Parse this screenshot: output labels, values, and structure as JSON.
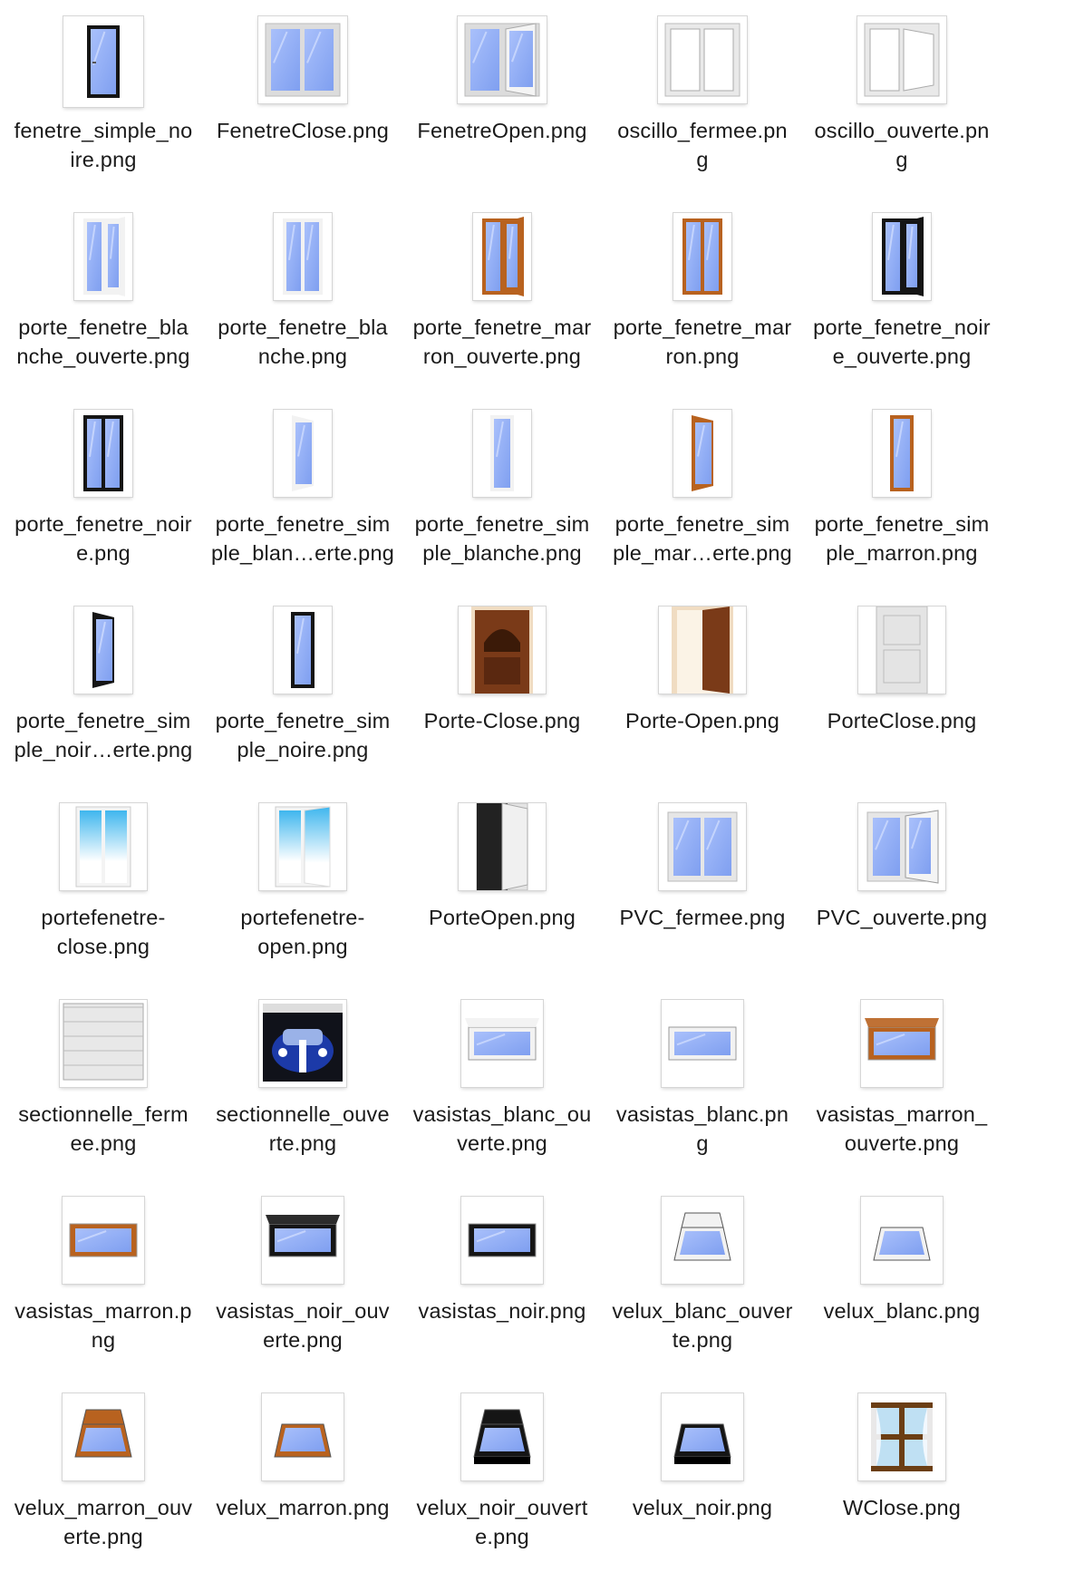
{
  "files": [
    {
      "name": "fenetre_simple_noire.png",
      "label": "fenetre_simple_no\nire.png",
      "icon": "single-window-black-icon"
    },
    {
      "name": "FenetreClose.png",
      "label": "FenetreClose.png",
      "icon": "double-window-closed-icon"
    },
    {
      "name": "FenetreOpen.png",
      "label": "FenetreOpen.png",
      "icon": "double-window-open-icon"
    },
    {
      "name": "oscillo_fermee.png",
      "label": "oscillo_fermee.pn\ng",
      "icon": "tilt-window-closed-icon"
    },
    {
      "name": "oscillo_ouverte.png",
      "label": "oscillo_ouverte.pn\ng",
      "icon": "tilt-window-open-icon"
    },
    {
      "name": "porte_fenetre_blanche_ouverte.png",
      "label": "porte_fenetre_bla\nnche_ouverte.png",
      "icon": "french-window-white-open-icon"
    },
    {
      "name": "porte_fenetre_blanche.png",
      "label": "porte_fenetre_bla\nnche.png",
      "icon": "french-window-white-icon"
    },
    {
      "name": "porte_fenetre_marron_ouverte.png",
      "label": "porte_fenetre_mar\nron_ouverte.png",
      "icon": "french-window-brown-open-icon"
    },
    {
      "name": "porte_fenetre_marron.png",
      "label": "porte_fenetre_mar\nron.png",
      "icon": "french-window-brown-icon"
    },
    {
      "name": "porte_fenetre_noire_ouverte.png",
      "label": "porte_fenetre_noir\ne_ouverte.png",
      "icon": "french-window-black-open-icon"
    },
    {
      "name": "porte_fenetre_noire.png",
      "label": "porte_fenetre_noir\ne.png",
      "icon": "french-window-black-icon"
    },
    {
      "name": "porte_fenetre_simple_blanche_ouverte.png",
      "label": "porte_fenetre_sim\nple_blan…erte.png",
      "icon": "single-french-window-white-open-icon"
    },
    {
      "name": "porte_fenetre_simple_blanche.png",
      "label": "porte_fenetre_sim\nple_blanche.png",
      "icon": "single-french-window-white-icon"
    },
    {
      "name": "porte_fenetre_simple_marron_ouverte.png",
      "label": "porte_fenetre_sim\nple_mar…erte.png",
      "icon": "single-french-window-brown-open-icon"
    },
    {
      "name": "porte_fenetre_simple_marron.png",
      "label": "porte_fenetre_sim\nple_marron.png",
      "icon": "single-french-window-brown-icon"
    },
    {
      "name": "porte_fenetre_simple_noire_ouverte.png",
      "label": "porte_fenetre_sim\nple_noir…erte.png",
      "icon": "single-french-window-black-open-icon"
    },
    {
      "name": "porte_fenetre_simple_noire.png",
      "label": "porte_fenetre_sim\nple_noire.png",
      "icon": "single-french-window-black-icon"
    },
    {
      "name": "Porte-Close.png",
      "label": "Porte-Close.png",
      "icon": "wooden-door-closed-icon"
    },
    {
      "name": "Porte-Open.png",
      "label": "Porte-Open.png",
      "icon": "wooden-door-open-icon"
    },
    {
      "name": "PorteClose.png",
      "label": "PorteClose.png",
      "icon": "white-door-closed-icon"
    },
    {
      "name": "portefenetre-close.png",
      "label": "portefenetre-\nclose.png",
      "icon": "patio-door-closed-icon"
    },
    {
      "name": "portefenetre-open.png",
      "label": "portefenetre-\nopen.png",
      "icon": "patio-door-open-icon"
    },
    {
      "name": "PorteOpen.png",
      "label": "PorteOpen.png",
      "icon": "white-door-open-icon"
    },
    {
      "name": "PVC_fermee.png",
      "label": "PVC_fermee.png",
      "icon": "pvc-window-closed-icon"
    },
    {
      "name": "PVC_ouverte.png",
      "label": "PVC_ouverte.png",
      "icon": "pvc-window-open-icon"
    },
    {
      "name": "sectionnelle_fermee.png",
      "label": "sectionnelle_ferm\nee.png",
      "icon": "garage-door-closed-icon"
    },
    {
      "name": "sectionnelle_ouverte.png",
      "label": "sectionnelle_ouve\nrte.png",
      "icon": "garage-door-open-car-icon"
    },
    {
      "name": "vasistas_blanc_ouverte.png",
      "label": "vasistas_blanc_ou\nverte.png",
      "icon": "transom-white-open-icon"
    },
    {
      "name": "vasistas_blanc.png",
      "label": "vasistas_blanc.pn\ng",
      "icon": "transom-white-icon"
    },
    {
      "name": "vasistas_marron_ouverte.png",
      "label": "vasistas_marron_\nouverte.png",
      "icon": "transom-brown-open-icon"
    },
    {
      "name": "vasistas_marron.png",
      "label": "vasistas_marron.p\nng",
      "icon": "transom-brown-icon"
    },
    {
      "name": "vasistas_noir_ouverte.png",
      "label": "vasistas_noir_ouv\nerte.png",
      "icon": "transom-black-open-icon"
    },
    {
      "name": "vasistas_noir.png",
      "label": "vasistas_noir.png",
      "icon": "transom-black-icon"
    },
    {
      "name": "velux_blanc_ouverte.png",
      "label": "velux_blanc_ouver\nte.png",
      "icon": "skylight-white-open-icon"
    },
    {
      "name": "velux_blanc.png",
      "label": "velux_blanc.png",
      "icon": "skylight-white-icon"
    },
    {
      "name": "velux_marron_ouverte.png",
      "label": "velux_marron_ouv\nerte.png",
      "icon": "skylight-brown-open-icon"
    },
    {
      "name": "velux_marron.png",
      "label": "velux_marron.png",
      "icon": "skylight-brown-icon"
    },
    {
      "name": "velux_noir_ouverte.png",
      "label": "velux_noir_ouvert\ne.png",
      "icon": "skylight-black-open-icon"
    },
    {
      "name": "velux_noir.png",
      "label": "velux_noir.png",
      "icon": "skylight-black-icon"
    },
    {
      "name": "WClose.png",
      "label": "WClose.png",
      "icon": "window-curtains-closed-icon"
    }
  ],
  "colors": {
    "glass": "#7f9ff0",
    "glass_light": "#a9c0fb",
    "white_frame": "#f2f2f2",
    "brown_frame": "#b8621f",
    "black_frame": "#151515",
    "wood": "#7a3a18",
    "label_text": "#1a1a1a",
    "background": "#ffffff"
  }
}
